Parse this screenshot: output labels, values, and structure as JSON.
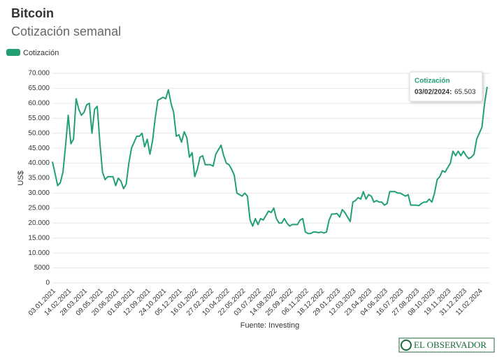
{
  "chart_data": {
    "type": "line",
    "title": "Bitcoin",
    "subtitle": "Cotización semanal",
    "y_label": "US$",
    "source": "Fuente: Investing",
    "logo": "EL OBSERVADOR",
    "categories": [
      "03.01.2021",
      null,
      null,
      null,
      null,
      null,
      "14.02.2021",
      null,
      null,
      null,
      null,
      null,
      "28.03.2021",
      null,
      null,
      null,
      null,
      null,
      "09.05.2021",
      null,
      null,
      null,
      null,
      null,
      "20.06.2021",
      null,
      null,
      null,
      null,
      null,
      "01.08.2021",
      null,
      null,
      null,
      null,
      null,
      "12.09.2021",
      null,
      null,
      null,
      null,
      null,
      "24.10.2021",
      null,
      null,
      null,
      null,
      null,
      "05.12.2021",
      null,
      null,
      null,
      null,
      null,
      "16.01.2022",
      null,
      null,
      null,
      null,
      null,
      "27.02.2022",
      null,
      null,
      null,
      null,
      null,
      "10.04.2022",
      null,
      null,
      null,
      null,
      null,
      "22.05.2022",
      null,
      null,
      null,
      null,
      null,
      "03.07.2022",
      null,
      null,
      null,
      null,
      null,
      "14.08.2022",
      null,
      null,
      null,
      null,
      null,
      "25.09.2022",
      null,
      null,
      null,
      null,
      null,
      "06.11.2022",
      null,
      null,
      null,
      null,
      null,
      "18.12.2022",
      null,
      null,
      null,
      null,
      null,
      "29.01.2023",
      null,
      null,
      null,
      null,
      null,
      "12.03.2023",
      null,
      null,
      null,
      null,
      null,
      "23.04.2023",
      null,
      null,
      null,
      null,
      null,
      "04.06.2023",
      null,
      null,
      null,
      null,
      null,
      "16.07.2023",
      null,
      null,
      null,
      null,
      null,
      "27.08.2023",
      null,
      null,
      null,
      null,
      null,
      "08.10.2023",
      null,
      null,
      null,
      null,
      null,
      "19.11.2023",
      null,
      null,
      null,
      null,
      null,
      "31.12.2023",
      null,
      null,
      null,
      null,
      null,
      "11.02.2024",
      null,
      null,
      null
    ],
    "series": [
      {
        "name": "Cotización",
        "color": "#23a072",
        "values": [
          40500,
          36500,
          32500,
          33500,
          37000,
          46000,
          56000,
          46500,
          48000,
          61500,
          58000,
          56000,
          57000,
          59500,
          60000,
          50000,
          58000,
          59000,
          47000,
          37000,
          34500,
          35500,
          35500,
          35500,
          32500,
          35000,
          34000,
          31500,
          33000,
          40000,
          45000,
          47000,
          49000,
          49000,
          50000,
          45500,
          48000,
          43000,
          47500,
          55000,
          61000,
          61500,
          62000,
          61500,
          64500,
          60000,
          57000,
          49000,
          49500,
          47000,
          50500,
          48500,
          42000,
          43500,
          35500,
          38000,
          42000,
          42500,
          39500,
          39500,
          39500,
          39000,
          43000,
          44500,
          46000,
          42500,
          40000,
          39500,
          38000,
          36000,
          30000,
          29500,
          29000,
          30000,
          29000,
          21000,
          19000,
          21500,
          19500,
          21500,
          21000,
          22500,
          24000,
          23500,
          25000,
          21500,
          20000,
          20000,
          21500,
          20000,
          19000,
          19500,
          19500,
          19500,
          21000,
          21500,
          17000,
          16500,
          16500,
          17000,
          17000,
          16800,
          17000,
          16700,
          17000,
          21000,
          23000,
          23000,
          23200,
          22000,
          24500,
          23500,
          22000,
          20500,
          27000,
          27500,
          28500,
          28000,
          30500,
          28000,
          29500,
          29000,
          27000,
          27500,
          27000,
          27000,
          26000,
          26500,
          30500,
          30500,
          30500,
          30000,
          30000,
          29500,
          29000,
          29500,
          26000,
          26000,
          26000,
          25800,
          26500,
          27000,
          27000,
          28000,
          27000,
          30000,
          34500,
          35500,
          37500,
          37000,
          38500,
          40000,
          44000,
          42500,
          44000,
          42500,
          44000,
          42500,
          41500,
          42000,
          43000,
          48000,
          50000,
          52000,
          60000,
          65503
        ]
      }
    ],
    "ylim": [
      0,
      70000
    ],
    "yticks": [
      0,
      5000,
      {
        "value": 10000,
        "label": "10.000"
      },
      {
        "value": 15000,
        "label": "15.000"
      },
      {
        "value": 20000,
        "label": "20.000"
      },
      {
        "value": 25000,
        "label": "25.000"
      },
      {
        "value": 30000,
        "label": "30.000"
      },
      {
        "value": 35000,
        "label": "35.000"
      },
      {
        "value": 40000,
        "label": "40.000"
      },
      {
        "value": 45000,
        "label": "45.000"
      },
      {
        "value": 50000,
        "label": "50.000"
      },
      {
        "value": 55000,
        "label": "55.000"
      },
      {
        "value": 60000,
        "label": "60.000"
      },
      {
        "value": 65000,
        "label": "65.000"
      },
      {
        "value": 70000,
        "label": "70.000"
      }
    ],
    "grid": true,
    "legend": "top-left",
    "tooltip": {
      "title": "Cotización",
      "date": "03/02/2024:",
      "value_label": "65.503"
    }
  }
}
